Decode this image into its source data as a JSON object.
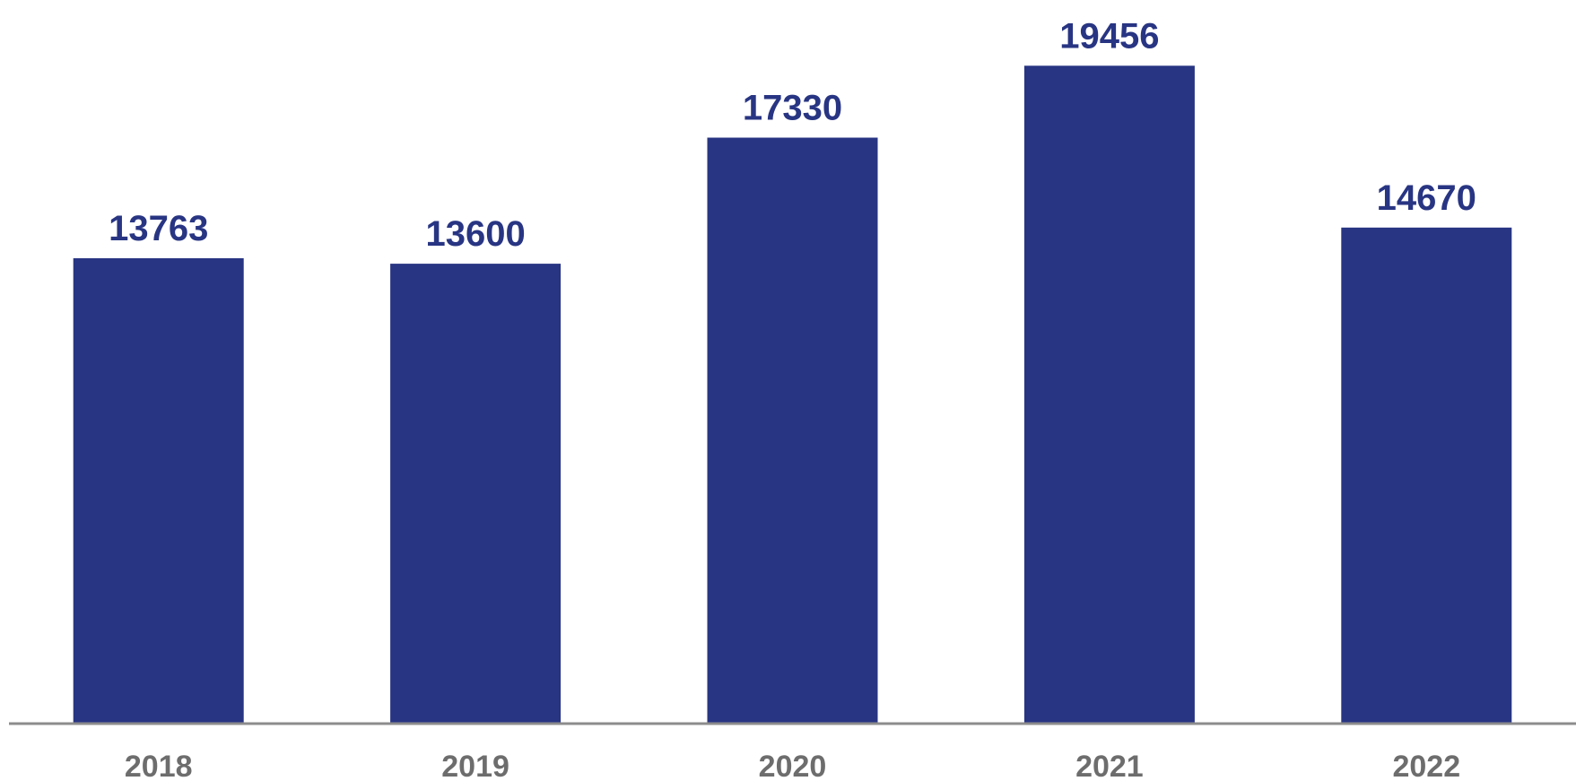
{
  "colors": {
    "bar": "#283583",
    "value_label": "#283583",
    "tick_label": "#6d6d6d",
    "axis": "#8c8c8c",
    "background": "#ffffff"
  },
  "chart_data": {
    "type": "bar",
    "title": "",
    "xlabel": "",
    "ylabel": "",
    "categories": [
      "2018",
      "2019",
      "2020",
      "2021",
      "2022"
    ],
    "values": [
      13763,
      13600,
      17330,
      19456,
      14670
    ],
    "data_labels": [
      "13763",
      "13600",
      "17330",
      "19456",
      "14670"
    ],
    "ylim": [
      0,
      21400
    ],
    "grid": false,
    "legend": "none",
    "y_axis_visible": false
  }
}
